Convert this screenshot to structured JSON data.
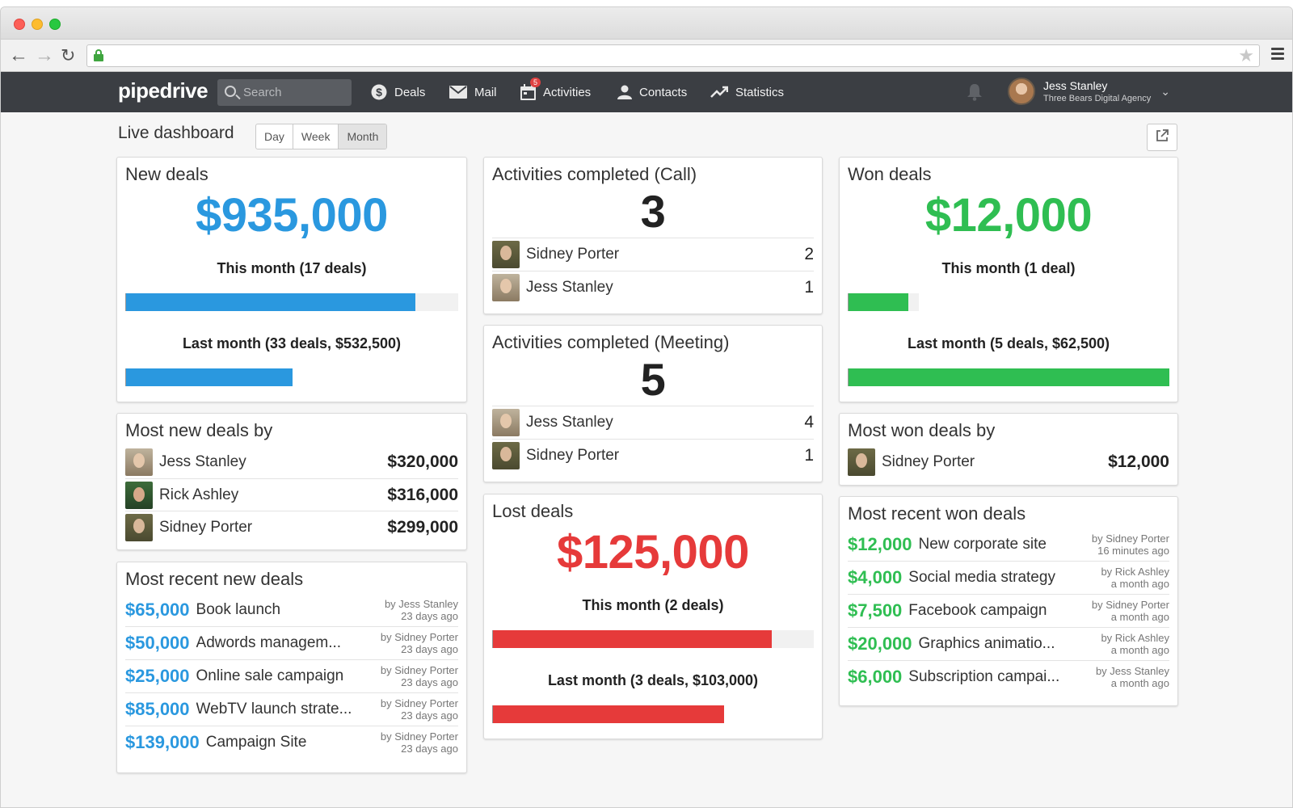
{
  "app": {
    "logo": "pipedrive",
    "search_placeholder": "Search",
    "nav": [
      {
        "label": "Deals"
      },
      {
        "label": "Mail"
      },
      {
        "label": "Activities",
        "badge": "5"
      },
      {
        "label": "Contacts"
      },
      {
        "label": "Statistics"
      }
    ],
    "user": {
      "name": "Jess Stanley",
      "org": "Three Bears Digital Agency"
    }
  },
  "dashboard": {
    "title": "Live dashboard",
    "periods": [
      "Day",
      "Week",
      "Month"
    ],
    "active_period": "Month"
  },
  "new_deals": {
    "title": "New deals",
    "amount": "$935,000",
    "this_month": "This month (17 deals)",
    "this_month_fill": 0.87,
    "last_month": "Last month (33 deals, $532,500)",
    "last_month_fill": 0.5
  },
  "calls": {
    "title": "Activities completed (Call)",
    "total": "3",
    "rows": [
      {
        "name": "Sidney Porter",
        "count": "2",
        "avatar": "sidney"
      },
      {
        "name": "Jess Stanley",
        "count": "1",
        "avatar": "jess"
      }
    ]
  },
  "meetings": {
    "title": "Activities completed (Meeting)",
    "total": "5",
    "rows": [
      {
        "name": "Jess Stanley",
        "count": "4",
        "avatar": "jess"
      },
      {
        "name": "Sidney Porter",
        "count": "1",
        "avatar": "sidney"
      }
    ]
  },
  "won_deals": {
    "title": "Won deals",
    "amount": "$12,000",
    "this_month": "This month (1 deal)",
    "this_month_fill": 0.19,
    "last_month": "Last month (5 deals, $62,500)",
    "last_month_fill": 1.0
  },
  "lost_deals": {
    "title": "Lost deals",
    "amount": "$125,000",
    "this_month": "This month (2 deals)",
    "this_month_fill": 0.87,
    "last_month": "Last month (3 deals, $103,000)",
    "last_month_fill": 0.72
  },
  "most_new_by": {
    "title": "Most new deals by",
    "rows": [
      {
        "name": "Jess Stanley",
        "value": "$320,000",
        "avatar": "jess"
      },
      {
        "name": "Rick Ashley",
        "value": "$316,000",
        "avatar": "rick"
      },
      {
        "name": "Sidney Porter",
        "value": "$299,000",
        "avatar": "sidney"
      }
    ]
  },
  "most_won_by": {
    "title": "Most won deals by",
    "rows": [
      {
        "name": "Sidney Porter",
        "value": "$12,000",
        "avatar": "sidney"
      }
    ]
  },
  "recent_new": {
    "title": "Most recent new deals",
    "rows": [
      {
        "amount": "$65,000",
        "name": "Book launch",
        "by": "by Jess Stanley",
        "when": "23 days ago"
      },
      {
        "amount": "$50,000",
        "name": "Adwords managem...",
        "by": "by Sidney Porter",
        "when": "23 days ago"
      },
      {
        "amount": "$25,000",
        "name": "Online sale campaign",
        "by": "by Sidney Porter",
        "when": "23 days ago"
      },
      {
        "amount": "$85,000",
        "name": "WebTV launch strate...",
        "by": "by Sidney Porter",
        "when": "23 days ago"
      },
      {
        "amount": "$139,000",
        "name": "Campaign Site",
        "by": "by Sidney Porter",
        "when": "23 days ago"
      }
    ]
  },
  "recent_won": {
    "title": "Most recent won deals",
    "rows": [
      {
        "amount": "$12,000",
        "name": "New corporate site",
        "by": "by Sidney Porter",
        "when": "16 minutes ago"
      },
      {
        "amount": "$4,000",
        "name": "Social media strategy",
        "by": "by Rick Ashley",
        "when": "a month ago"
      },
      {
        "amount": "$7,500",
        "name": "Facebook campaign",
        "by": "by Sidney Porter",
        "when": "a month ago"
      },
      {
        "amount": "$20,000",
        "name": "Graphics animatio...",
        "by": "by Rick Ashley",
        "when": "a month ago"
      },
      {
        "amount": "$6,000",
        "name": "Subscription campai...",
        "by": "by Jess Stanley",
        "when": "a month ago"
      }
    ]
  },
  "colors": {
    "blue": "#2a98df",
    "green": "#2fbe52",
    "red": "#e63a3a",
    "nav_bg": "#3b3e43"
  }
}
